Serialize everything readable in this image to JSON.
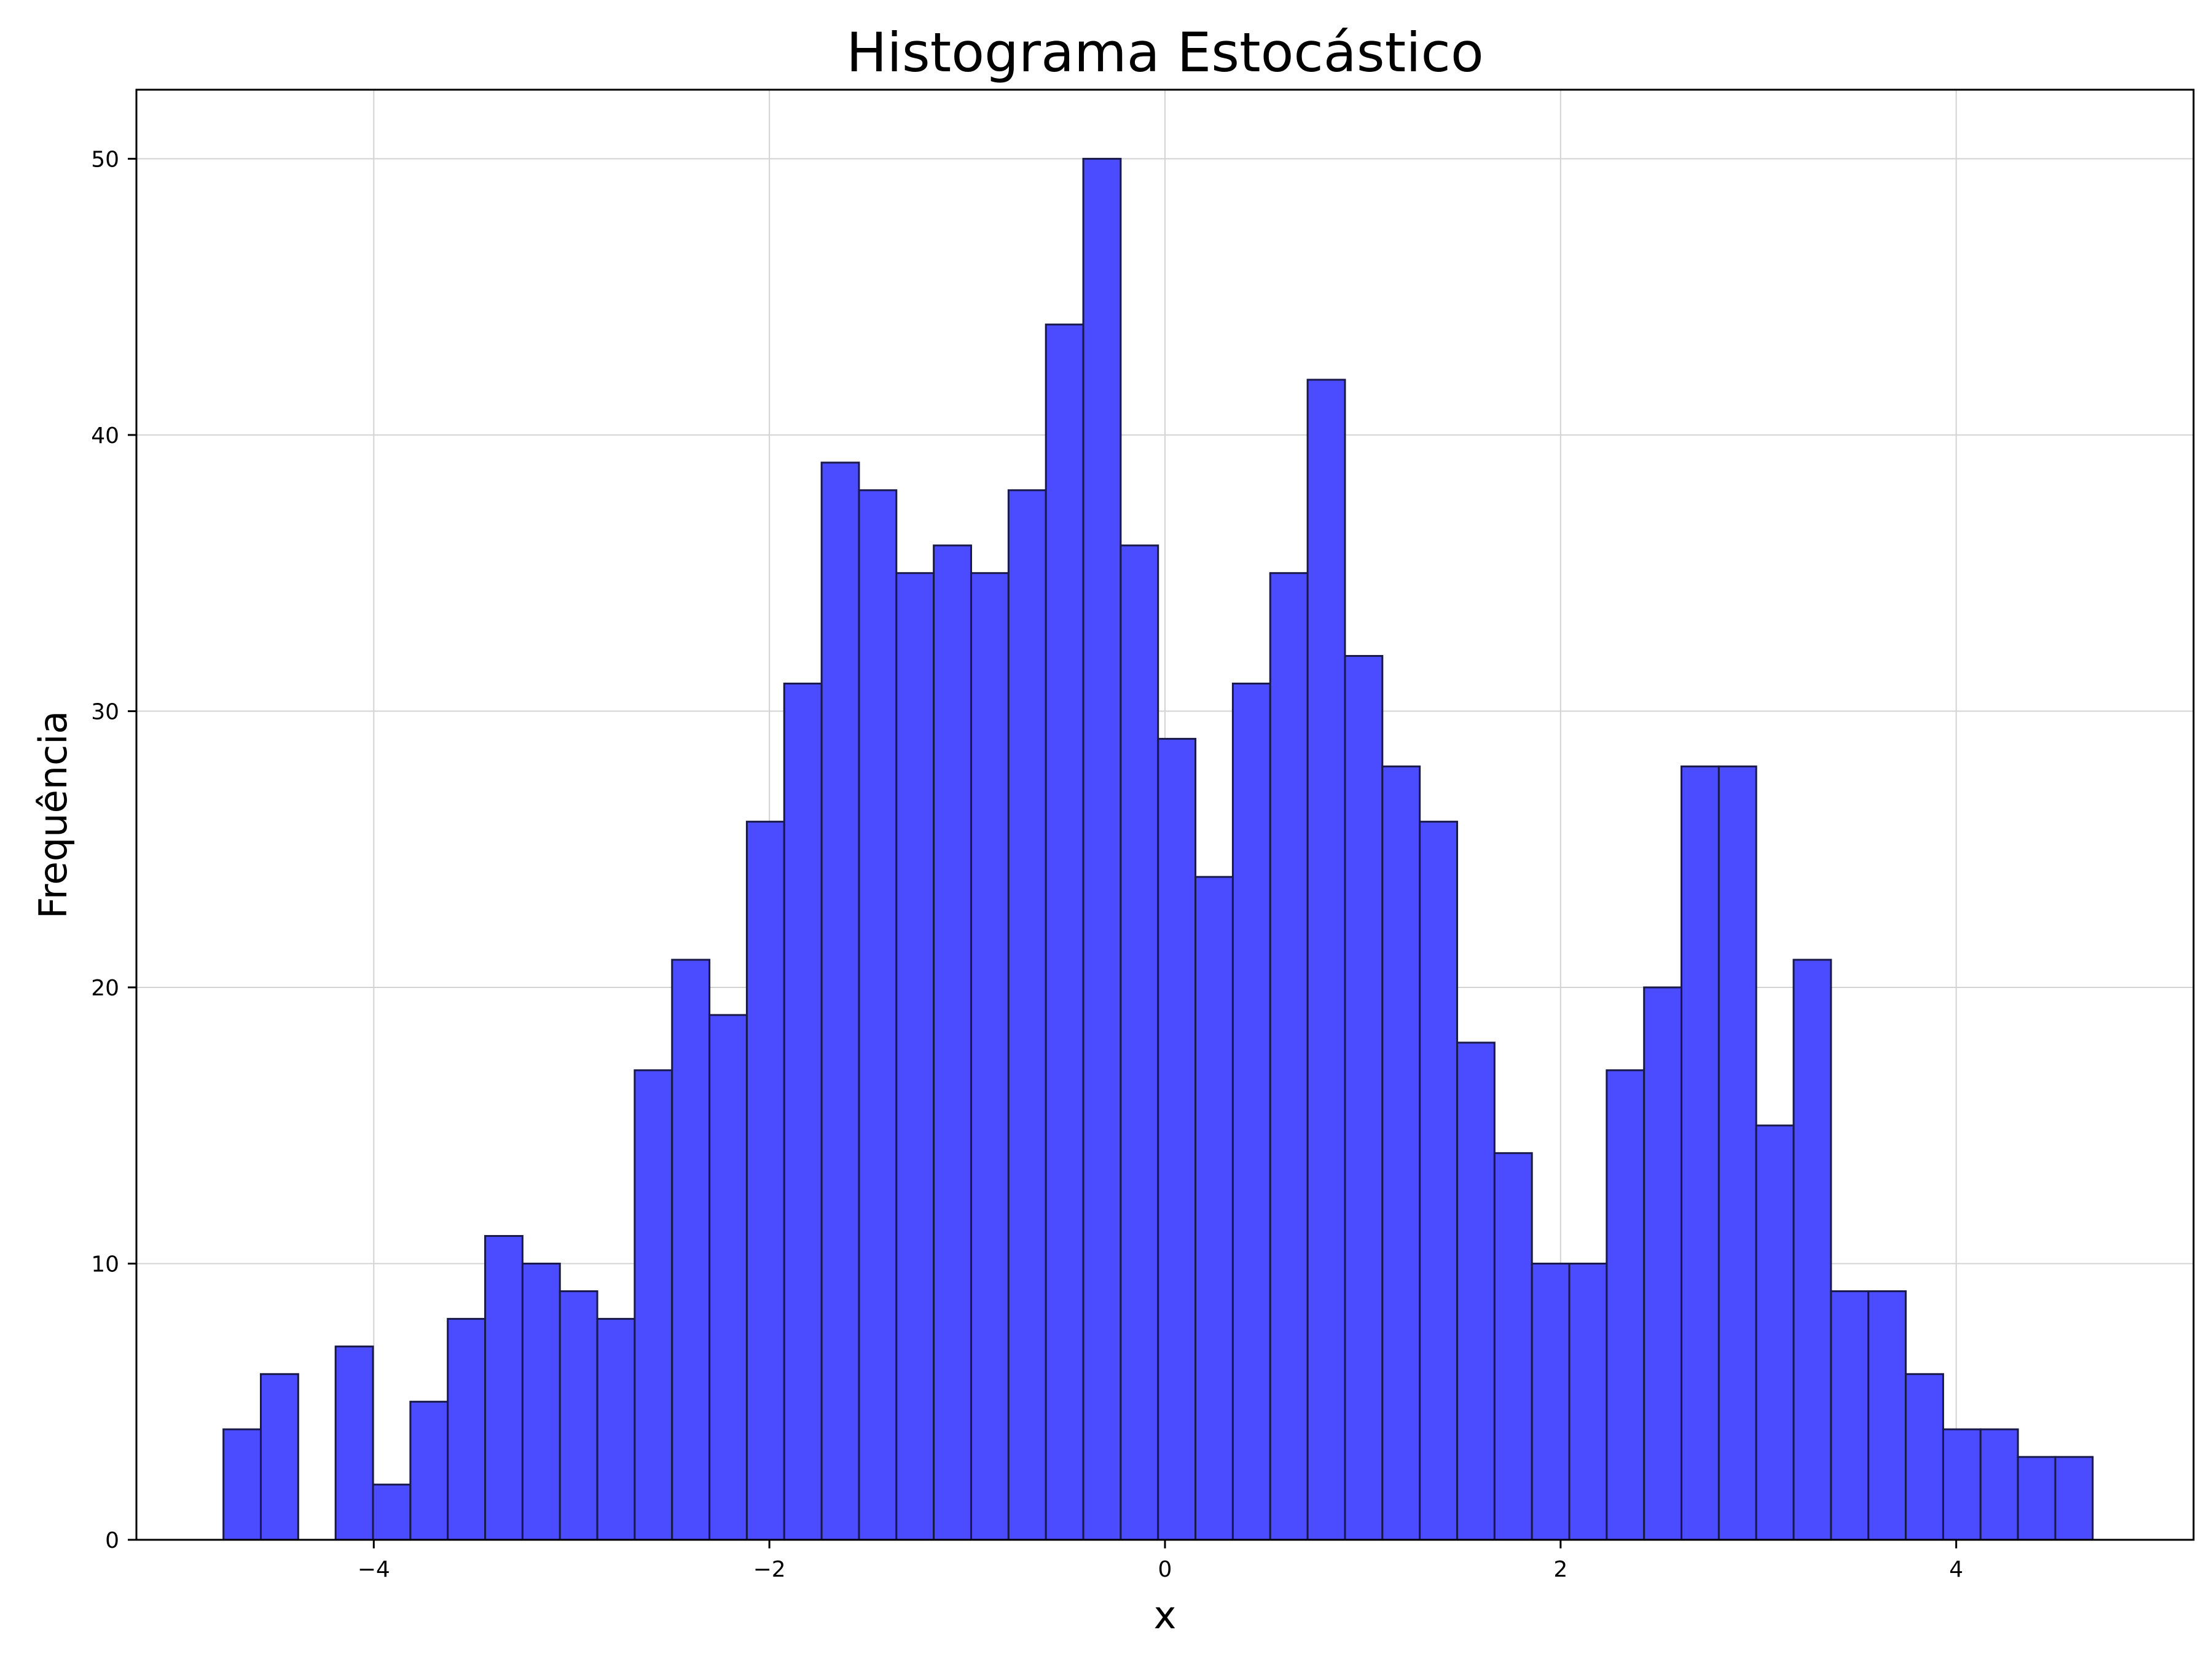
{
  "chart_data": {
    "type": "bar",
    "title": "Histograma Estocástico",
    "xlabel": "x",
    "ylabel": "Frequência",
    "xlim": [
      -5.2,
      5.2
    ],
    "ylim": [
      0,
      52.5
    ],
    "xticks": [
      -4,
      -2,
      0,
      2,
      4
    ],
    "xtick_labels": [
      "−4",
      "−2",
      "0",
      "2",
      "4"
    ],
    "yticks": [
      0,
      10,
      20,
      30,
      40,
      50
    ],
    "ytick_labels": [
      "0",
      "10",
      "20",
      "30",
      "40",
      "50"
    ],
    "grid": true,
    "bin_start": -4.76,
    "bin_width": 0.189,
    "counts": [
      4,
      6,
      0,
      7,
      2,
      5,
      8,
      11,
      10,
      9,
      8,
      17,
      21,
      19,
      26,
      31,
      39,
      38,
      35,
      36,
      35,
      38,
      44,
      50,
      36,
      29,
      24,
      31,
      35,
      42,
      32,
      28,
      26,
      18,
      14,
      10,
      10,
      17,
      20,
      28,
      28,
      15,
      21,
      9,
      9,
      6,
      4,
      4,
      3,
      3
    ],
    "colors": {
      "bar_fill": "#4b4bff",
      "bar_edge": "#1a1a4a",
      "grid": "#d3d3d3",
      "axes": "#000000"
    }
  }
}
